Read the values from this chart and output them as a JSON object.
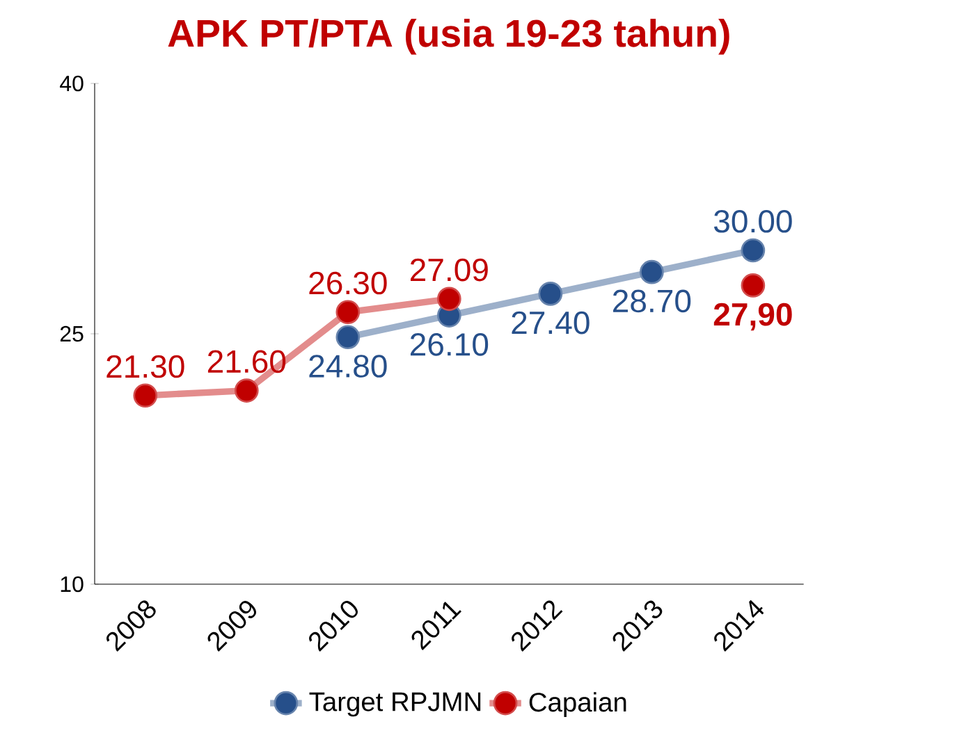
{
  "chart_data": {
    "type": "line",
    "title": "APK PT/PTA (usia 19-23 tahun)",
    "categories": [
      "2008",
      "2009",
      "2010",
      "2011",
      "2012",
      "2013",
      "2014"
    ],
    "series": [
      {
        "name": "Target RPJMN",
        "color": "#264f8a",
        "values": [
          null,
          null,
          24.8,
          26.1,
          27.4,
          28.7,
          30.0
        ],
        "value_labels": [
          null,
          null,
          "24.80",
          "26.10",
          "27.40",
          "28.70",
          "30.00"
        ]
      },
      {
        "name": "Capaian",
        "color": "#c00000",
        "values": [
          21.3,
          21.6,
          26.3,
          27.09,
          null,
          null,
          27.9
        ],
        "value_labels": [
          "21.30",
          "21.60",
          "26.30",
          "27.09",
          null,
          null,
          "**27,90**"
        ]
      }
    ],
    "ylim": [
      10,
      40
    ],
    "yticks": [
      10,
      25,
      40
    ],
    "marker": "circle",
    "legend": "bottom",
    "grid": false
  }
}
